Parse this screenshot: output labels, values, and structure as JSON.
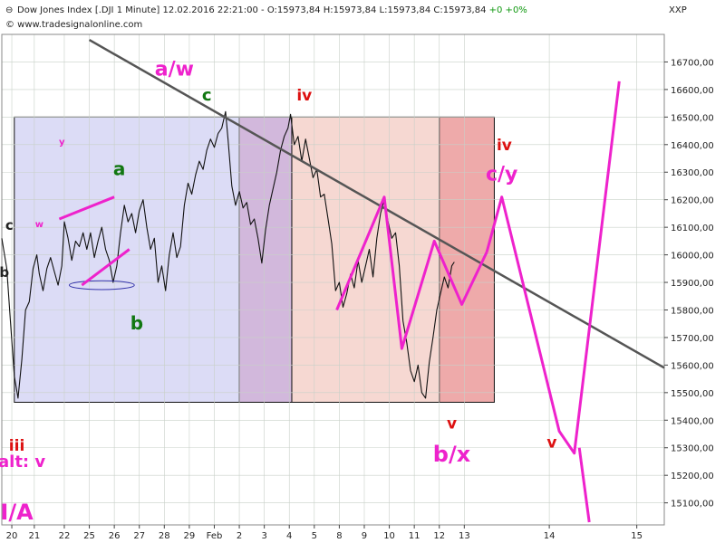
{
  "header": {
    "instrument": "Dow Jones Index [.DJI  1 Minute]",
    "datetime": "12.02.2016 22:21:00",
    "ohlc": "O:15973,84 H:15973,84 L:15973,84 C:15973,84",
    "change": "+0 +0%",
    "source": "© www.tradesignalonline.com",
    "axis_name": "XXP"
  },
  "colors": {
    "magenta": "#ee22cc",
    "red": "#dd1111",
    "green": "#117711",
    "dark": "#222222",
    "box_blue": "#dcdcf6",
    "box_purple": "#d2b8dc",
    "box_salmon": "#f6d8d2",
    "box_red": "#eeaaaa",
    "trendline": "#555555"
  },
  "chart_data": {
    "type": "line",
    "title": "Dow Jones Index [.DJI  1 Minute]",
    "y_axis": {
      "ylim": [
        15020,
        16800
      ],
      "ticks": [
        15100,
        15200,
        15300,
        15400,
        15500,
        15600,
        15700,
        15800,
        15900,
        16000,
        16100,
        16200,
        16300,
        16400,
        16500,
        16600,
        16700
      ],
      "tick_labels": [
        "15100,00",
        "15200,00",
        "15300,00",
        "15400,00",
        "15500,00",
        "15600,00",
        "15700,00",
        "15800,00",
        "15900,00",
        "16000,00",
        "16100,00",
        "16200,00",
        "16300,00",
        "16400,00",
        "16500,00",
        "16600,00",
        "16700,00"
      ],
      "side": "right"
    },
    "x_axis": {
      "ticks": [
        {
          "label": "20",
          "x": 0.9
        },
        {
          "label": "21",
          "x": 1.8
        },
        {
          "label": "22",
          "x": 3.0
        },
        {
          "label": "25",
          "x": 4.0
        },
        {
          "label": "26",
          "x": 5.0
        },
        {
          "label": "27",
          "x": 6.0
        },
        {
          "label": "28",
          "x": 7.0
        },
        {
          "label": "29",
          "x": 8.0
        },
        {
          "label": "Feb",
          "x": 9.0
        },
        {
          "label": "2",
          "x": 10.0
        },
        {
          "label": "3",
          "x": 11.0
        },
        {
          "label": "4",
          "x": 12.0
        },
        {
          "label": "5",
          "x": 13.0
        },
        {
          "label": "8",
          "x": 14.0
        },
        {
          "label": "9",
          "x": 15.0
        },
        {
          "label": "10",
          "x": 16.0
        },
        {
          "label": "11",
          "x": 17.0
        },
        {
          "label": "12",
          "x": 18.0
        },
        {
          "label": "13",
          "x": 19.0
        },
        {
          "label": "14",
          "x": 22.4
        },
        {
          "label": "15",
          "x": 25.9
        }
      ],
      "xlim": [
        0.5,
        27
      ]
    },
    "grid": true,
    "price_series": [
      [
        0.5,
        16060
      ],
      [
        0.7,
        15950
      ],
      [
        0.85,
        15750
      ],
      [
        1.0,
        15560
      ],
      [
        1.15,
        15480
      ],
      [
        1.3,
        15620
      ],
      [
        1.45,
        15800
      ],
      [
        1.6,
        15830
      ],
      [
        1.75,
        15950
      ],
      [
        1.9,
        16000
      ],
      [
        2.0,
        15930
      ],
      [
        2.15,
        15870
      ],
      [
        2.3,
        15950
      ],
      [
        2.45,
        15990
      ],
      [
        2.6,
        15940
      ],
      [
        2.75,
        15890
      ],
      [
        2.9,
        15960
      ],
      [
        3.0,
        16120
      ],
      [
        3.15,
        16060
      ],
      [
        3.3,
        15980
      ],
      [
        3.45,
        16050
      ],
      [
        3.6,
        16030
      ],
      [
        3.75,
        16080
      ],
      [
        3.9,
        16020
      ],
      [
        4.05,
        16080
      ],
      [
        4.2,
        15990
      ],
      [
        4.35,
        16050
      ],
      [
        4.5,
        16100
      ],
      [
        4.65,
        16020
      ],
      [
        4.8,
        15980
      ],
      [
        4.95,
        15900
      ],
      [
        5.1,
        15960
      ],
      [
        5.25,
        16080
      ],
      [
        5.4,
        16180
      ],
      [
        5.55,
        16120
      ],
      [
        5.7,
        16150
      ],
      [
        5.85,
        16080
      ],
      [
        6.0,
        16160
      ],
      [
        6.15,
        16200
      ],
      [
        6.3,
        16100
      ],
      [
        6.45,
        16020
      ],
      [
        6.6,
        16060
      ],
      [
        6.75,
        15900
      ],
      [
        6.9,
        15960
      ],
      [
        7.05,
        15870
      ],
      [
        7.2,
        16000
      ],
      [
        7.35,
        16080
      ],
      [
        7.5,
        15990
      ],
      [
        7.65,
        16030
      ],
      [
        7.8,
        16180
      ],
      [
        7.95,
        16260
      ],
      [
        8.1,
        16220
      ],
      [
        8.25,
        16290
      ],
      [
        8.4,
        16340
      ],
      [
        8.55,
        16310
      ],
      [
        8.7,
        16380
      ],
      [
        8.85,
        16420
      ],
      [
        9.0,
        16390
      ],
      [
        9.15,
        16440
      ],
      [
        9.3,
        16460
      ],
      [
        9.45,
        16520
      ],
      [
        9.55,
        16420
      ],
      [
        9.7,
        16250
      ],
      [
        9.85,
        16180
      ],
      [
        10.0,
        16230
      ],
      [
        10.15,
        16170
      ],
      [
        10.3,
        16190
      ],
      [
        10.45,
        16110
      ],
      [
        10.6,
        16130
      ],
      [
        10.75,
        16060
      ],
      [
        10.9,
        15970
      ],
      [
        11.05,
        16090
      ],
      [
        11.2,
        16180
      ],
      [
        11.35,
        16240
      ],
      [
        11.5,
        16300
      ],
      [
        11.65,
        16380
      ],
      [
        11.8,
        16430
      ],
      [
        11.95,
        16460
      ],
      [
        12.05,
        16510
      ],
      [
        12.2,
        16400
      ],
      [
        12.35,
        16430
      ],
      [
        12.5,
        16340
      ],
      [
        12.65,
        16420
      ],
      [
        12.8,
        16350
      ],
      [
        12.95,
        16280
      ],
      [
        13.1,
        16310
      ],
      [
        13.25,
        16210
      ],
      [
        13.4,
        16220
      ],
      [
        13.55,
        16130
      ],
      [
        13.7,
        16040
      ],
      [
        13.85,
        15870
      ],
      [
        14.0,
        15900
      ],
      [
        14.15,
        15810
      ],
      [
        14.3,
        15860
      ],
      [
        14.45,
        15930
      ],
      [
        14.6,
        15880
      ],
      [
        14.75,
        15980
      ],
      [
        14.9,
        15900
      ],
      [
        15.05,
        15960
      ],
      [
        15.2,
        16020
      ],
      [
        15.35,
        15920
      ],
      [
        15.5,
        16060
      ],
      [
        15.65,
        16150
      ],
      [
        15.8,
        16200
      ],
      [
        15.95,
        16120
      ],
      [
        16.1,
        16060
      ],
      [
        16.25,
        16080
      ],
      [
        16.4,
        15960
      ],
      [
        16.55,
        15760
      ],
      [
        16.7,
        15680
      ],
      [
        16.85,
        15580
      ],
      [
        17.0,
        15540
      ],
      [
        17.15,
        15600
      ],
      [
        17.3,
        15500
      ],
      [
        17.45,
        15480
      ],
      [
        17.6,
        15610
      ],
      [
        17.75,
        15700
      ],
      [
        17.9,
        15800
      ],
      [
        18.05,
        15860
      ],
      [
        18.2,
        15920
      ],
      [
        18.35,
        15880
      ],
      [
        18.5,
        15960
      ],
      [
        18.6,
        15974
      ]
    ],
    "wave_path_past": [
      [
        2.8,
        16130
      ],
      [
        5.0,
        16210
      ],
      [
        3.7,
        15890
      ],
      [
        5.6,
        16020
      ],
      [
        13.9,
        15800
      ],
      [
        15.8,
        16210
      ],
      [
        16.5,
        15660
      ],
      [
        17.8,
        16050
      ],
      [
        18.9,
        15820
      ],
      [
        19.9,
        16010
      ]
    ],
    "wave_path_projection": [
      [
        19.9,
        16010
      ],
      [
        20.5,
        16210
      ],
      [
        22.8,
        15360
      ],
      [
        23.4,
        15280
      ],
      [
        25.2,
        16630
      ]
    ],
    "projection_tail": [
      [
        23.6,
        15300
      ],
      [
        24.0,
        15030
      ]
    ],
    "trendline": [
      [
        4.0,
        16780
      ],
      [
        27.0,
        15590
      ]
    ],
    "range_ellipse": {
      "cx": 4.5,
      "cy": 15890,
      "rx": 1.3,
      "ry": 16
    },
    "boxes": [
      {
        "name": "box-a",
        "x1": 1.0,
        "x2": 10.0,
        "y1": 16500,
        "y2": 15465,
        "fill": "box_blue"
      },
      {
        "name": "box-b",
        "x1": 10.0,
        "x2": 12.1,
        "y1": 16500,
        "y2": 15465,
        "fill": "box_purple"
      },
      {
        "name": "box-c",
        "x1": 12.1,
        "x2": 18.0,
        "y1": 16500,
        "y2": 15465,
        "fill": "box_salmon"
      },
      {
        "name": "box-d",
        "x1": 18.0,
        "x2": 20.2,
        "y1": 16500,
        "y2": 15465,
        "fill": "box_red"
      }
    ],
    "wave_labels": [
      {
        "text": "a/w",
        "x": 7.4,
        "y": 16650,
        "color": "magenta",
        "size": 22
      },
      {
        "text": "c",
        "x": 8.7,
        "y": 16560,
        "color": "green",
        "size": 18
      },
      {
        "text": "iv",
        "x": 12.6,
        "y": 16560,
        "color": "red",
        "size": 17
      },
      {
        "text": "a",
        "x": 5.2,
        "y": 16290,
        "color": "green",
        "size": 20
      },
      {
        "text": "b",
        "x": 5.9,
        "y": 15730,
        "color": "green",
        "size": 20
      },
      {
        "text": "y",
        "x": 2.9,
        "y": 16400,
        "color": "magenta",
        "size": 10
      },
      {
        "text": "w",
        "x": 2.0,
        "y": 16100,
        "color": "magenta",
        "size": 10
      },
      {
        "text": "c",
        "x": 0.8,
        "y": 16090,
        "color": "dark",
        "size": 15
      },
      {
        "text": "b",
        "x": 0.6,
        "y": 15920,
        "color": "dark",
        "size": 15
      },
      {
        "text": "iii",
        "x": 1.1,
        "y": 15290,
        "color": "red",
        "size": 17
      },
      {
        "text": "alt: v",
        "x": 1.3,
        "y": 15230,
        "color": "magenta",
        "size": 18
      },
      {
        "text": "I/A",
        "x": 1.1,
        "y": 15040,
        "color": "magenta",
        "size": 24
      },
      {
        "text": "iv",
        "x": 20.6,
        "y": 16380,
        "color": "red",
        "size": 17
      },
      {
        "text": "c/y",
        "x": 20.5,
        "y": 16270,
        "color": "magenta",
        "size": 22
      },
      {
        "text": "v",
        "x": 18.5,
        "y": 15370,
        "color": "red",
        "size": 17
      },
      {
        "text": "b/x",
        "x": 18.5,
        "y": 15250,
        "color": "magenta",
        "size": 24
      },
      {
        "text": "v",
        "x": 22.5,
        "y": 15300,
        "color": "red",
        "size": 17
      }
    ]
  }
}
